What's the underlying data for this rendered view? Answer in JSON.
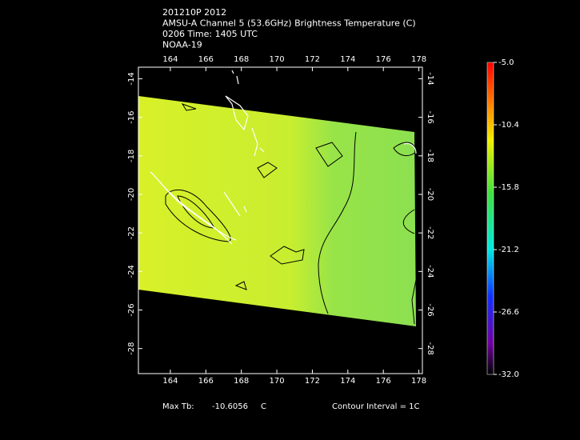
{
  "header": {
    "lines": [
      "201210P 2012",
      "AMSU-A Channel 5 (53.6GHz) Brightness Temperature (C)",
      "0206 Time: 1405 UTC",
      "NOAA-19"
    ]
  },
  "map": {
    "lonlim": [
      162.2,
      178.2
    ],
    "latlim": [
      -13.4,
      -29.3
    ],
    "lonticks": [
      164,
      166,
      168,
      170,
      172,
      174,
      176,
      178
    ],
    "latticks": [
      -14,
      -16,
      -18,
      -20,
      -22,
      -24,
      -26,
      -28
    ]
  },
  "colorbar": {
    "lim": [
      -5,
      -32
    ],
    "ticks": [
      {
        "value": -5,
        "label": "-5.0"
      },
      -10.4,
      -15.8,
      -21.2,
      -26.6,
      {
        "value": -32,
        "label": "-32.0"
      }
    ]
  },
  "footer": {
    "max_label": "Max Tb:",
    "max_value": "-10.6056",
    "max_unit": "C",
    "contour": "Contour Interval = 1C"
  }
}
